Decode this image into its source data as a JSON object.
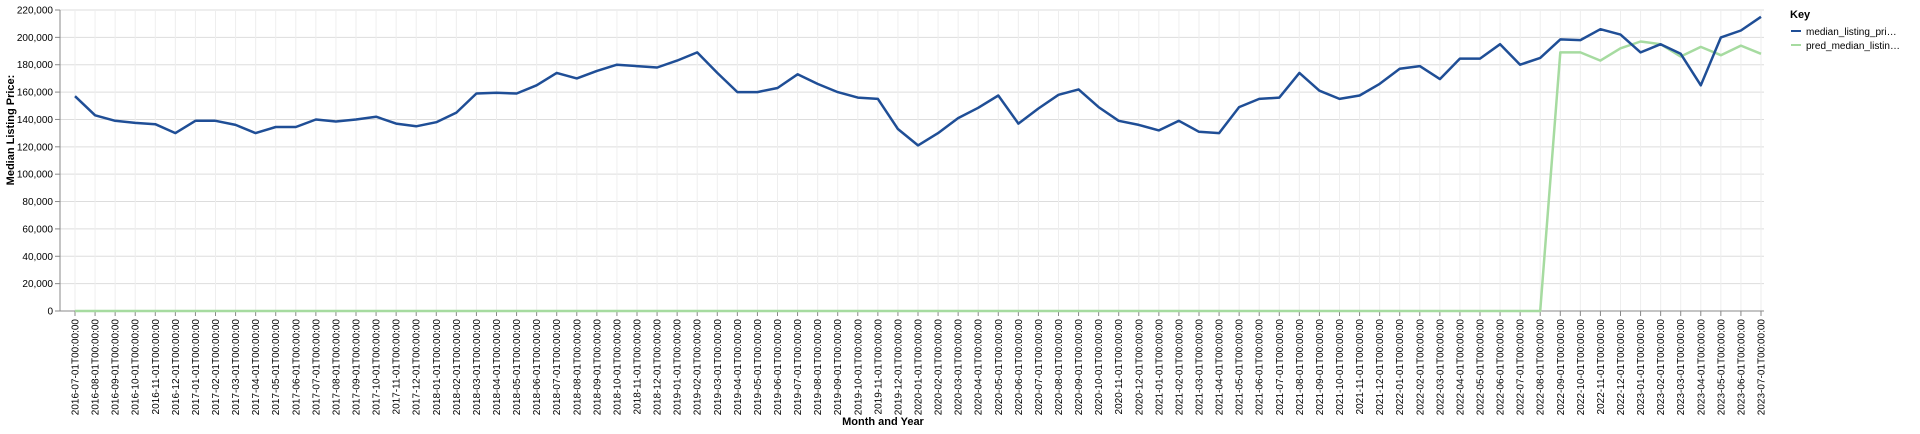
{
  "chart_data": {
    "type": "line",
    "xlabel": "Month and Year",
    "ylabel": "Median Listing Price:",
    "ylim": [
      0,
      220000
    ],
    "yticks": [
      "0",
      "20,000",
      "40,000",
      "60,000",
      "80,000",
      "100,000",
      "120,000",
      "140,000",
      "160,000",
      "180,000",
      "200,000",
      "220,000"
    ],
    "grid": true,
    "legend": {
      "title": "Key",
      "position": "right"
    },
    "x": [
      "2016-07-01T00:00:00",
      "2016-08-01T00:00:00",
      "2016-09-01T00:00:00",
      "2016-10-01T00:00:00",
      "2016-11-01T00:00:00",
      "2016-12-01T00:00:00",
      "2017-01-01T00:00:00",
      "2017-02-01T00:00:00",
      "2017-03-01T00:00:00",
      "2017-04-01T00:00:00",
      "2017-05-01T00:00:00",
      "2017-06-01T00:00:00",
      "2017-07-01T00:00:00",
      "2017-08-01T00:00:00",
      "2017-09-01T00:00:00",
      "2017-10-01T00:00:00",
      "2017-11-01T00:00:00",
      "2017-12-01T00:00:00",
      "2018-01-01T00:00:00",
      "2018-02-01T00:00:00",
      "2018-03-01T00:00:00",
      "2018-04-01T00:00:00",
      "2018-05-01T00:00:00",
      "2018-06-01T00:00:00",
      "2018-07-01T00:00:00",
      "2018-08-01T00:00:00",
      "2018-09-01T00:00:00",
      "2018-10-01T00:00:00",
      "2018-11-01T00:00:00",
      "2018-12-01T00:00:00",
      "2019-01-01T00:00:00",
      "2019-02-01T00:00:00",
      "2019-03-01T00:00:00",
      "2019-04-01T00:00:00",
      "2019-05-01T00:00:00",
      "2019-06-01T00:00:00",
      "2019-07-01T00:00:00",
      "2019-08-01T00:00:00",
      "2019-09-01T00:00:00",
      "2019-10-01T00:00:00",
      "2019-11-01T00:00:00",
      "2019-12-01T00:00:00",
      "2020-01-01T00:00:00",
      "2020-02-01T00:00:00",
      "2020-03-01T00:00:00",
      "2020-04-01T00:00:00",
      "2020-05-01T00:00:00",
      "2020-06-01T00:00:00",
      "2020-07-01T00:00:00",
      "2020-08-01T00:00:00",
      "2020-09-01T00:00:00",
      "2020-10-01T00:00:00",
      "2020-11-01T00:00:00",
      "2020-12-01T00:00:00",
      "2021-01-01T00:00:00",
      "2021-02-01T00:00:00",
      "2021-03-01T00:00:00",
      "2021-04-01T00:00:00",
      "2021-05-01T00:00:00",
      "2021-06-01T00:00:00",
      "2021-07-01T00:00:00",
      "2021-08-01T00:00:00",
      "2021-09-01T00:00:00",
      "2021-10-01T00:00:00",
      "2021-11-01T00:00:00",
      "2021-12-01T00:00:00",
      "2022-01-01T00:00:00",
      "2022-02-01T00:00:00",
      "2022-03-01T00:00:00",
      "2022-04-01T00:00:00",
      "2022-05-01T00:00:00",
      "2022-06-01T00:00:00",
      "2022-07-01T00:00:00",
      "2022-08-01T00:00:00",
      "2022-09-01T00:00:00",
      "2022-10-01T00:00:00",
      "2022-11-01T00:00:00",
      "2022-12-01T00:00:00",
      "2023-01-01T00:00:00",
      "2023-02-01T00:00:00",
      "2023-03-01T00:00:00",
      "2023-04-01T00:00:00",
      "2023-05-01T00:00:00",
      "2023-06-01T00:00:00",
      "2023-07-01T00:00:00"
    ],
    "series": [
      {
        "name": "median_listing_pri…",
        "color": "#1f4e96",
        "values": [
          157000,
          143000,
          139000,
          137500,
          136500,
          130000,
          139000,
          139000,
          136000,
          130000,
          134500,
          134500,
          140000,
          138500,
          140000,
          142000,
          137000,
          135000,
          138000,
          145000,
          159000,
          159500,
          159000,
          165000,
          174000,
          170000,
          175500,
          180000,
          179000,
          178000,
          183000,
          189000,
          174000,
          160000,
          160000,
          163000,
          173000,
          166000,
          160000,
          156000,
          155000,
          133000,
          121000,
          130000,
          141000,
          148500,
          157500,
          137000,
          148000,
          158000,
          162000,
          149000,
          139000,
          136000,
          132000,
          139000,
          131000,
          130000,
          149000,
          155000,
          156000,
          174000,
          161000,
          155000,
          157500,
          166000,
          177000,
          179000,
          169500,
          184500,
          184500,
          195000,
          180000,
          185000,
          198500,
          198000,
          206000,
          202000,
          189000,
          195000,
          188000,
          165000,
          200000,
          205000,
          215000
        ]
      },
      {
        "name": "pred_median_listin…",
        "color": "#a6dba0",
        "values": [
          0,
          0,
          0,
          0,
          0,
          0,
          0,
          0,
          0,
          0,
          0,
          0,
          0,
          0,
          0,
          0,
          0,
          0,
          0,
          0,
          0,
          0,
          0,
          0,
          0,
          0,
          0,
          0,
          0,
          0,
          0,
          0,
          0,
          0,
          0,
          0,
          0,
          0,
          0,
          0,
          0,
          0,
          0,
          0,
          0,
          0,
          0,
          0,
          0,
          0,
          0,
          0,
          0,
          0,
          0,
          0,
          0,
          0,
          0,
          0,
          0,
          0,
          0,
          0,
          0,
          0,
          0,
          0,
          0,
          0,
          0,
          0,
          0,
          0,
          189000,
          189000,
          183000,
          192000,
          197000,
          195000,
          186000,
          193000,
          187000,
          194000,
          188000
        ]
      }
    ]
  }
}
